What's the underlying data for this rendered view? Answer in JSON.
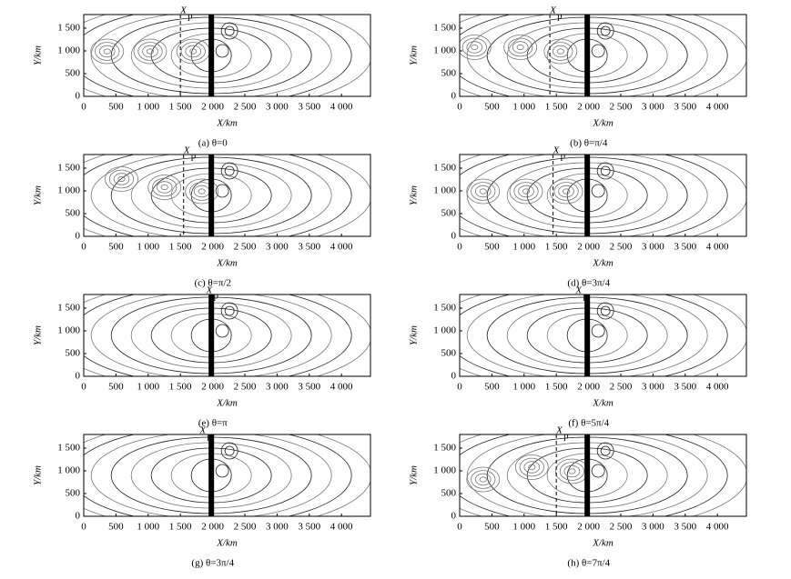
{
  "chart_data": [
    {
      "type": "contour",
      "caption": "(a) θ=0",
      "xlabel": "X/km",
      "ylabel": "Y/km",
      "xp_label": "X",
      "xp_sub": "p",
      "xp": 1500,
      "xp_line": true,
      "xlim": [
        0,
        4450
      ],
      "ylim": [
        0,
        1800
      ],
      "xticks": [
        0,
        500,
        {
          "value": 1000,
          "label": "1 000"
        },
        {
          "value": 1500,
          "label": "1 500"
        },
        {
          "value": 2000,
          "label": "2 000"
        },
        {
          "value": 2500,
          "label": "2 500"
        },
        {
          "value": 3000,
          "label": "3 000"
        },
        {
          "value": 3500,
          "label": "3 500"
        },
        {
          "value": 4000,
          "label": "4 000"
        }
      ],
      "yticks": [
        0,
        500,
        {
          "value": 1000,
          "label": "1 000"
        },
        {
          "value": 1500,
          "label": "1 500"
        }
      ]
    },
    {
      "type": "contour",
      "caption": "(b) θ=π/4",
      "xlabel": "X/km",
      "ylabel": "Y/km",
      "xp_label": "X",
      "xp_sub": "p",
      "xp": 1400,
      "xp_line": true,
      "xlim": [
        0,
        4450
      ],
      "ylim": [
        0,
        1800
      ],
      "xticks": [
        0,
        500,
        {
          "value": 1000,
          "label": "1 000"
        },
        {
          "value": 1500,
          "label": "1 500"
        },
        {
          "value": 2000,
          "label": "2 000"
        },
        {
          "value": 2500,
          "label": "2 500"
        },
        {
          "value": 3000,
          "label": "3 000"
        },
        {
          "value": 3500,
          "label": "3 500"
        },
        {
          "value": 4000,
          "label": "4 000"
        }
      ],
      "yticks": [
        0,
        500,
        {
          "value": 1000,
          "label": "1 000"
        },
        {
          "value": 1500,
          "label": "1 500"
        }
      ]
    },
    {
      "type": "contour",
      "caption": "(c) θ=π/2",
      "xlabel": "X/km",
      "ylabel": "Y/km",
      "xp_label": "X",
      "xp_sub": "p",
      "xp": 1550,
      "xp_line": true,
      "xlim": [
        0,
        4450
      ],
      "ylim": [
        0,
        1800
      ],
      "xticks": [
        0,
        500,
        {
          "value": 1000,
          "label": "1 000"
        },
        {
          "value": 1500,
          "label": "1 500"
        },
        {
          "value": 2000,
          "label": "2 000"
        },
        {
          "value": 2500,
          "label": "2 500"
        },
        {
          "value": 3000,
          "label": "3 000"
        },
        {
          "value": 3500,
          "label": "3 500"
        },
        {
          "value": 4000,
          "label": "4 000"
        }
      ],
      "yticks": [
        0,
        500,
        {
          "value": 1000,
          "label": "1 000"
        },
        {
          "value": 1500,
          "label": "1 500"
        }
      ]
    },
    {
      "type": "contour",
      "caption": "(d) θ=3π/4",
      "xlabel": "X/km",
      "ylabel": "Y/km",
      "xp_label": "X",
      "xp_sub": "p",
      "xp": 1450,
      "xp_line": true,
      "xlim": [
        0,
        4450
      ],
      "ylim": [
        0,
        1800
      ],
      "xticks": [
        0,
        500,
        {
          "value": 1000,
          "label": "1 000"
        },
        {
          "value": 1500,
          "label": "1 500"
        },
        {
          "value": 2000,
          "label": "2 000"
        },
        {
          "value": 2500,
          "label": "2 500"
        },
        {
          "value": 3000,
          "label": "3 000"
        },
        {
          "value": 3500,
          "label": "3 500"
        },
        {
          "value": 4000,
          "label": "4 000"
        }
      ],
      "yticks": [
        0,
        500,
        {
          "value": 1000,
          "label": "1 000"
        },
        {
          "value": 1500,
          "label": "1 500"
        }
      ]
    },
    {
      "type": "contour",
      "caption": "(e) θ=π",
      "xlabel": "X/km",
      "ylabel": "Y/km",
      "xp_label": "X",
      "xp_sub": "p",
      "xp": 1900,
      "xp_line": false,
      "xlim": [
        0,
        4450
      ],
      "ylim": [
        0,
        1800
      ],
      "xticks": [
        0,
        500,
        {
          "value": 1000,
          "label": "1 000"
        },
        {
          "value": 1500,
          "label": "1 500"
        },
        {
          "value": 2000,
          "label": "2 000"
        },
        {
          "value": 2500,
          "label": "2 500"
        },
        {
          "value": 3000,
          "label": "3 000"
        },
        {
          "value": 3500,
          "label": "3 500"
        },
        {
          "value": 4000,
          "label": "4 000"
        }
      ],
      "yticks": [
        0,
        500,
        {
          "value": 1000,
          "label": "1 000"
        },
        {
          "value": 1500,
          "label": "1 500"
        }
      ]
    },
    {
      "type": "contour",
      "caption": "(f) θ=5π/4",
      "xlabel": "X/km",
      "ylabel": "Y/km",
      "xp_label": "X",
      "xp_sub": "p",
      "xp": 1800,
      "xp_line": false,
      "xlim": [
        0,
        4450
      ],
      "ylim": [
        0,
        1800
      ],
      "xticks": [
        0,
        500,
        {
          "value": 1000,
          "label": "1 000"
        },
        {
          "value": 1500,
          "label": "1 500"
        },
        {
          "value": 2000,
          "label": "2 000"
        },
        {
          "value": 2500,
          "label": "2 500"
        },
        {
          "value": 3000,
          "label": "3 000"
        },
        {
          "value": 3500,
          "label": "3 500"
        },
        {
          "value": 4000,
          "label": "4 000"
        }
      ],
      "yticks": [
        0,
        500,
        {
          "value": 1000,
          "label": "1 000"
        },
        {
          "value": 1500,
          "label": "1 500"
        }
      ]
    },
    {
      "type": "contour",
      "caption": "(g) θ=3π/4",
      "xlabel": "X/km",
      "ylabel": "Y/km",
      "xp_label": "X",
      "xp_sub": "p",
      "xp": 1800,
      "xp_line": false,
      "xlim": [
        0,
        4450
      ],
      "ylim": [
        0,
        1800
      ],
      "xticks": [
        0,
        500,
        {
          "value": 1000,
          "label": "1 000"
        },
        {
          "value": 1500,
          "label": "1 500"
        },
        {
          "value": 2000,
          "label": "2 000"
        },
        {
          "value": 2500,
          "label": "2 500"
        },
        {
          "value": 3000,
          "label": "3 000"
        },
        {
          "value": 3500,
          "label": "3 500"
        },
        {
          "value": 4000,
          "label": "4 000"
        }
      ],
      "yticks": [
        0,
        500,
        {
          "value": 1000,
          "label": "1 000"
        },
        {
          "value": 1500,
          "label": "1 500"
        }
      ]
    },
    {
      "type": "contour",
      "caption": "(h) θ=7π/4",
      "xlabel": "X/km",
      "ylabel": "Y/km",
      "xp_label": "X",
      "xp_sub": "p",
      "xp": 1500,
      "xp_line": true,
      "xlim": [
        0,
        4450
      ],
      "ylim": [
        0,
        1800
      ],
      "xticks": [
        0,
        500,
        {
          "value": 1000,
          "label": "1 000"
        },
        {
          "value": 1500,
          "label": "1 500"
        },
        {
          "value": 2000,
          "label": "2 000"
        },
        {
          "value": 2500,
          "label": "2 500"
        },
        {
          "value": 3000,
          "label": "3 000"
        },
        {
          "value": 3500,
          "label": "3 500"
        },
        {
          "value": 4000,
          "label": "4 000"
        }
      ],
      "yticks": [
        0,
        500,
        {
          "value": 1000,
          "label": "1 000"
        },
        {
          "value": 1500,
          "label": "1 500"
        }
      ]
    }
  ]
}
